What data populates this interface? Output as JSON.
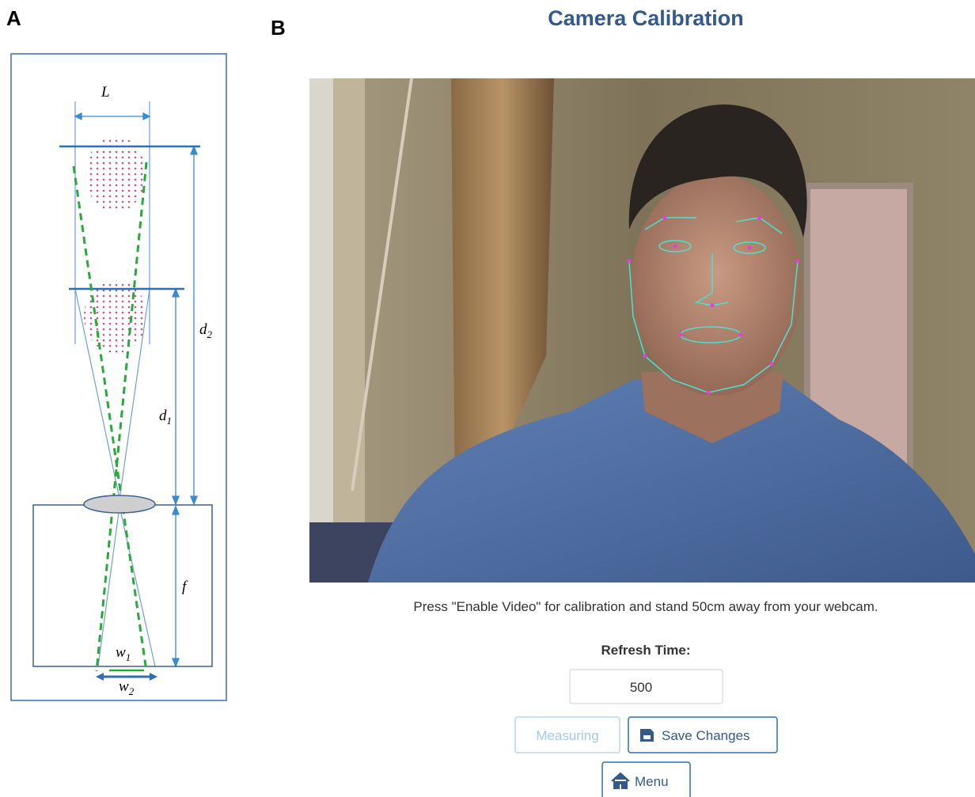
{
  "panel_a": {
    "letter": "A",
    "labels": {
      "L": "L",
      "d2": {
        "base": "d",
        "sub": "2"
      },
      "d1": {
        "base": "d",
        "sub": "1"
      },
      "f": "f",
      "w1": {
        "base": "w",
        "sub": "1"
      },
      "w2": {
        "base": "w",
        "sub": "2"
      }
    }
  },
  "panel_b": {
    "letter": "B",
    "title": "Camera Calibration",
    "instruction": "Press \"Enable Video\" for calibration and stand 50cm away from your webcam.",
    "refresh_label": "Refresh Time:",
    "refresh_value": "500",
    "buttons": {
      "measuring": "Measuring",
      "save": "Save Changes",
      "menu": "Menu"
    }
  }
}
